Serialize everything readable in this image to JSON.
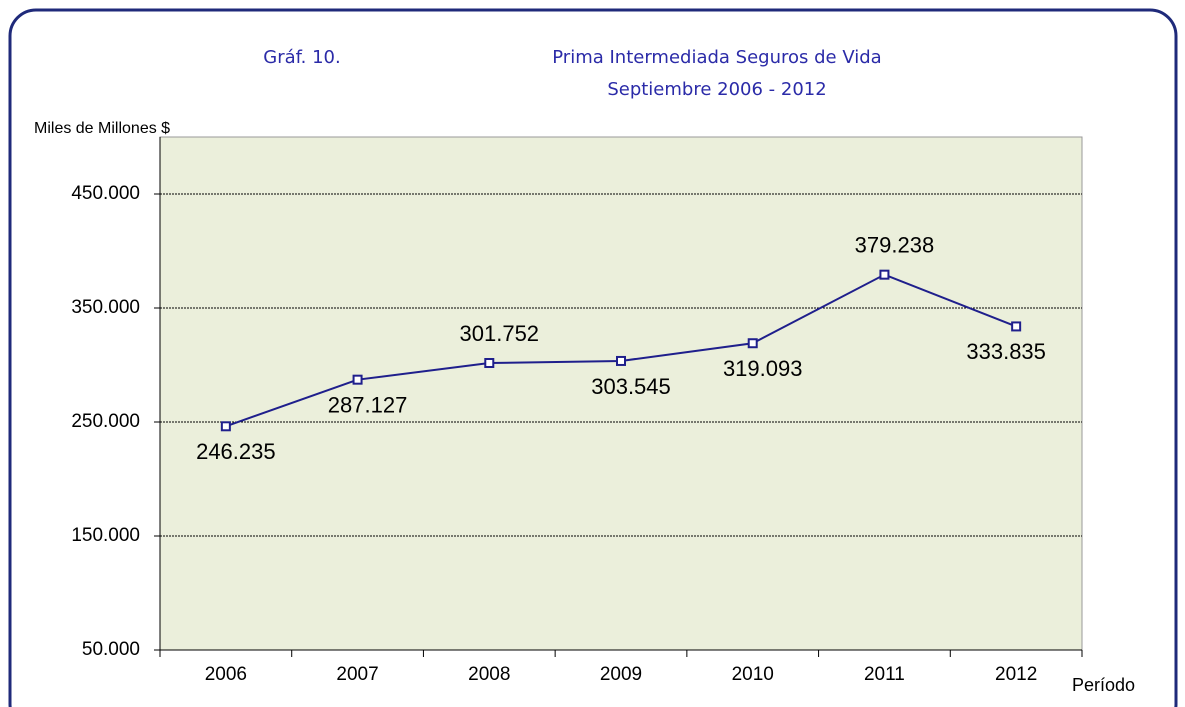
{
  "chart_data": {
    "type": "line",
    "label": "Gráf. 10.",
    "title": "Prima Intermediada Seguros de Vida",
    "subtitle": "Septiembre 2006 - 2012",
    "y_label": "Miles de Millones $",
    "x_label": "Período",
    "categories": [
      "2006",
      "2007",
      "2008",
      "2009",
      "2010",
      "2011",
      "2012"
    ],
    "series": [
      {
        "name": "Prima Intermediada",
        "color": "#1f1f8c",
        "values": [
          246235,
          287127,
          301752,
          303545,
          319093,
          379238,
          333835
        ],
        "value_labels": [
          "246.235",
          "287.127",
          "301.752",
          "303.545",
          "319.093",
          "379.238",
          "333.835"
        ]
      }
    ],
    "ylim": [
      50000,
      500000
    ],
    "yticks": [
      {
        "value": 50000,
        "label": "50.000"
      },
      {
        "value": 150000,
        "label": "150.000"
      },
      {
        "value": 250000,
        "label": "250.000"
      },
      {
        "value": 350000,
        "label": "350.000"
      },
      {
        "value": 450000,
        "label": "450.000"
      }
    ],
    "grid": true
  }
}
